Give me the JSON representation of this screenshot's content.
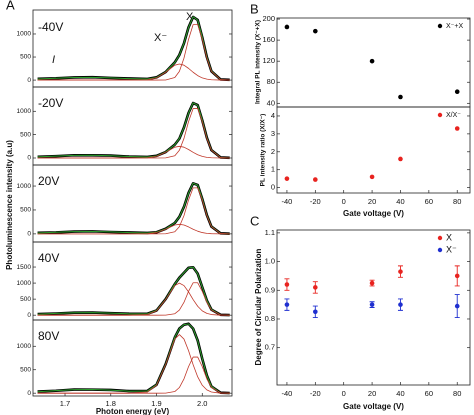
{
  "chart_data": [
    {
      "type": "line",
      "panel_label": "A",
      "label": "-40V",
      "annotations": [
        "X",
        "X⁻",
        "I"
      ],
      "ylabel": "Photoluminescence intensity (a.u)",
      "x": [
        1.64,
        1.68,
        1.72,
        1.76,
        1.8,
        1.84,
        1.88,
        1.9,
        1.92,
        1.94,
        1.95,
        1.96,
        1.97,
        1.98,
        1.99,
        2.0,
        2.01,
        2.02,
        2.04,
        2.06
      ],
      "xlim": [
        1.63,
        2.065
      ],
      "ylim": [
        -150,
        1520
      ],
      "yticks": [
        0,
        500,
        1000
      ],
      "series": [
        {
          "color": "#000000",
          "values": [
            28,
            38,
            58,
            63,
            47,
            35,
            25,
            60,
            175,
            385,
            546,
            798,
            1145,
            1370,
            1305,
            928,
            500,
            192,
            14,
            5
          ]
        },
        {
          "color": "#2ca02c",
          "values": [
            23,
            41,
            56,
            60,
            49,
            32,
            23,
            57,
            178,
            382,
            542,
            801,
            1139,
            1374,
            1301,
            931,
            496,
            196,
            11,
            0
          ]
        },
        {
          "color": "#c0392b",
          "values": [
            0,
            0,
            0,
            0,
            0,
            0,
            0,
            0,
            2,
            55,
            189,
            476,
            884,
            1203,
            1203,
            884,
            476,
            189,
            11,
            0
          ]
        },
        {
          "color": "#c0392b",
          "values": [
            0,
            0,
            0,
            0,
            0,
            0,
            7,
            47,
            170,
            323,
            350,
            323,
            254,
            170,
            97,
            47,
            20,
            7,
            0,
            0
          ]
        }
      ]
    },
    {
      "type": "line",
      "label": "-20V",
      "x": [
        1.64,
        1.68,
        1.72,
        1.76,
        1.8,
        1.84,
        1.88,
        1.9,
        1.92,
        1.94,
        1.95,
        1.96,
        1.97,
        1.98,
        1.99,
        2.0,
        2.01,
        2.02,
        2.04,
        2.06
      ],
      "xlim": [
        1.63,
        2.065
      ],
      "ylim": [
        -150,
        1520
      ],
      "yticks": [
        0,
        500,
        1000
      ],
      "series": [
        {
          "color": "#000000",
          "values": [
            26,
            39,
            59,
            57,
            52,
            30,
            24,
            46,
            128,
            286,
            415,
            655,
            966,
            1177,
            1133,
            808,
            437,
            168,
            13,
            4
          ]
        },
        {
          "color": "#2ca02c",
          "values": [
            23,
            41,
            56,
            60,
            49,
            32,
            21,
            44,
            130,
            283,
            419,
            652,
            961,
            1181,
            1129,
            812,
            433,
            171,
            10,
            0
          ]
        },
        {
          "color": "#c0392b",
          "values": [
            0,
            0,
            0,
            0,
            0,
            0,
            0,
            0,
            2,
            48,
            166,
            419,
            778,
            1058,
            1058,
            778,
            419,
            166,
            10,
            0
          ]
        },
        {
          "color": "#c0392b",
          "values": [
            0,
            0,
            0,
            0,
            0,
            0,
            5,
            34,
            122,
            231,
            250,
            231,
            182,
            122,
            70,
            34,
            14,
            5,
            0,
            0
          ]
        }
      ]
    },
    {
      "type": "line",
      "label": "20V",
      "x": [
        1.64,
        1.68,
        1.72,
        1.76,
        1.8,
        1.84,
        1.88,
        1.9,
        1.92,
        1.94,
        1.95,
        1.96,
        1.97,
        1.98,
        1.99,
        2.0,
        2.01,
        2.02,
        2.04,
        2.06
      ],
      "xlim": [
        1.63,
        2.065
      ],
      "ylim": [
        -170,
        1440
      ],
      "yticks": [
        0,
        500,
        1000
      ],
      "series": [
        {
          "color": "#000000",
          "values": [
            22,
            31,
            49,
            52,
            39,
            29,
            20,
            34,
            107,
            229,
            357,
            565,
            858,
            1056,
            1023,
            731,
            395,
            152,
            12,
            3
          ]
        },
        {
          "color": "#2ca02c",
          "values": [
            19,
            34,
            47,
            50,
            41,
            27,
            17,
            36,
            104,
            232,
            353,
            568,
            853,
            1060,
            1019,
            734,
            392,
            155,
            9,
            0
          ]
        },
        {
          "color": "#c0392b",
          "values": [
            0,
            0,
            0,
            0,
            0,
            0,
            0,
            0,
            2,
            44,
            151,
            381,
            707,
            962,
            962,
            707,
            381,
            151,
            9,
            0
          ]
        },
        {
          "color": "#c0392b",
          "values": [
            0,
            0,
            0,
            0,
            0,
            0,
            4,
            27,
            97,
            185,
            200,
            185,
            145,
            97,
            56,
            27,
            11,
            4,
            0,
            0
          ]
        }
      ]
    },
    {
      "type": "line",
      "label": "40V",
      "x": [
        1.64,
        1.68,
        1.72,
        1.76,
        1.8,
        1.84,
        1.88,
        1.9,
        1.92,
        1.94,
        1.95,
        1.96,
        1.97,
        1.98,
        1.99,
        2.0,
        2.01,
        2.02,
        2.04,
        2.06
      ],
      "xlim": [
        1.63,
        2.065
      ],
      "ylim": [
        -150,
        2280
      ],
      "yticks": [
        0,
        500,
        1000,
        1500
      ],
      "series": [
        {
          "color": "#000000",
          "values": [
            36,
            51,
            78,
            83,
            63,
            46,
            45,
            146,
            502,
            970,
            1168,
            1322,
            1476,
            1493,
            1294,
            874,
            460,
            175,
            13,
            4
          ]
        },
        {
          "color": "#2ca02c",
          "values": [
            31,
            55,
            75,
            79,
            66,
            42,
            41,
            149,
            497,
            974,
            1163,
            1326,
            1470,
            1498,
            1289,
            878,
            456,
            179,
            9,
            0
          ]
        },
        {
          "color": "#c0392b",
          "values": [
            0,
            0,
            0,
            0,
            0,
            0,
            0,
            0,
            2,
            46,
            159,
            400,
            742,
            1010,
            1010,
            742,
            400,
            159,
            9,
            0
          ]
        },
        {
          "color": "#c0392b",
          "values": [
            0,
            0,
            0,
            0,
            0,
            0,
            20,
            135,
            487,
            923,
            1000,
            923,
            726,
            487,
            278,
            135,
            56,
            20,
            0,
            0
          ]
        }
      ]
    },
    {
      "type": "line",
      "label": "80V",
      "xlabel": "Photon energy (eV)",
      "x": [
        1.64,
        1.68,
        1.72,
        1.76,
        1.8,
        1.84,
        1.88,
        1.9,
        1.92,
        1.94,
        1.95,
        1.96,
        1.97,
        1.98,
        1.99,
        2.0,
        2.01,
        2.02,
        2.04,
        2.06
      ],
      "xlim": [
        1.63,
        2.065
      ],
      "ylim": [
        -60,
        1560
      ],
      "yticks": [
        0,
        500,
        1000
      ],
      "xticks": [
        1.7,
        1.8,
        1.9,
        {
          "value": 2,
          "label": "2.0"
        }
      ],
      "series": [
        {
          "color": "#000000",
          "values": [
            35,
            52,
            78,
            76,
            69,
            45,
            49,
            180,
            622,
            1190,
            1379,
            1458,
            1481,
            1376,
            1123,
            732,
            379,
            143,
            10,
            3
          ]
        },
        {
          "color": "#2ca02c",
          "values": [
            31,
            55,
            75,
            79,
            66,
            42,
            46,
            183,
            618,
            1194,
            1375,
            1462,
            1476,
            1380,
            1119,
            736,
            375,
            146,
            7,
            0
          ]
        },
        {
          "color": "#c0392b",
          "values": [
            0,
            0,
            0,
            0,
            0,
            0,
            0,
            0,
            1,
            35,
            121,
            305,
            566,
            770,
            770,
            566,
            305,
            121,
            7,
            0
          ]
        },
        {
          "color": "#c0392b",
          "values": [
            0,
            0,
            0,
            0,
            0,
            0,
            25,
            169,
            609,
            1154,
            1250,
            1154,
            908,
            609,
            348,
            169,
            70,
            25,
            0,
            0
          ]
        }
      ]
    },
    {
      "type": "scatter",
      "panel_label": "B",
      "ylabel": "Integral PL intensity (X⁻+X)",
      "legend": "upper right",
      "x": [
        -40,
        -20,
        20,
        40,
        80
      ],
      "xlim": [
        -47,
        89
      ],
      "ylim": [
        33,
        202
      ],
      "yticks": [
        40,
        80,
        120,
        160,
        200
      ],
      "series": [
        {
          "name": "X⁻+X",
          "color": "#000000",
          "values": [
            185,
            177,
            120,
            52,
            62
          ]
        }
      ]
    },
    {
      "type": "scatter",
      "ylabel": "PL intensity ratio (X/X⁻)",
      "xlabel": "Gate voltage (V)",
      "legend": "upper right",
      "x": [
        -40,
        -20,
        20,
        40,
        80
      ],
      "xlim": [
        -47,
        89
      ],
      "ylim": [
        -0.3,
        4.5
      ],
      "yticks": [
        0,
        1,
        2,
        3,
        4
      ],
      "xticks": [
        -40,
        -20,
        0,
        20,
        40,
        60,
        80
      ],
      "series": [
        {
          "name": "X/X⁻",
          "color": "#e8231f",
          "values": [
            0.5,
            0.45,
            0.6,
            1.6,
            3.3
          ]
        }
      ]
    },
    {
      "type": "scatter",
      "panel_label": "C",
      "ylabel": "Degree of Circular Polarization",
      "xlabel": "Gate voltage (V)",
      "legend": "upper right",
      "x": [
        -40,
        -20,
        20,
        40,
        80
      ],
      "xlim": [
        -47,
        89
      ],
      "ylim": [
        0.57,
        1.11
      ],
      "yticks": [
        0.7,
        0.8,
        0.9,
        {
          "value": 1,
          "label": "1.0"
        },
        1.1
      ],
      "xticks": [
        -40,
        -20,
        0,
        20,
        40,
        60,
        80
      ],
      "series": [
        {
          "name": "X",
          "color": "#e8231f",
          "values": [
            0.92,
            0.91,
            0.925,
            0.965,
            0.95
          ],
          "errors": [
            0.02,
            0.02,
            0.01,
            0.02,
            0.035
          ]
        },
        {
          "name": "X⁻",
          "color": "#1f2fd0",
          "values": [
            0.85,
            0.825,
            0.85,
            0.85,
            0.845
          ],
          "errors": [
            0.02,
            0.02,
            0.01,
            0.02,
            0.04
          ]
        }
      ]
    }
  ]
}
